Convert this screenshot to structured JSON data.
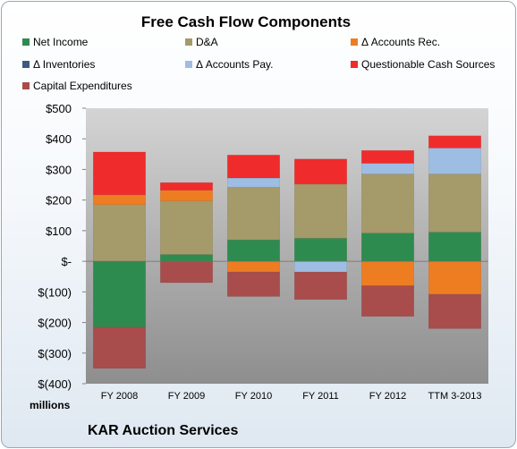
{
  "chart_data": {
    "type": "bar",
    "stacked": true,
    "title": "Free Cash Flow Components",
    "units_label": "millions",
    "company": "KAR Auction Services",
    "categories": [
      "FY 2008",
      "FY 2009",
      "FY 2010",
      "FY 2011",
      "FY 2012",
      "TTM 3-2013"
    ],
    "ylim": [
      -400,
      500
    ],
    "yticks": [
      {
        "value": 500,
        "label": "$500"
      },
      {
        "value": 400,
        "label": "$400"
      },
      {
        "value": 300,
        "label": "$300"
      },
      {
        "value": 200,
        "label": "$200"
      },
      {
        "value": 100,
        "label": "$100"
      },
      {
        "value": 0,
        "label": "$-"
      },
      {
        "value": -100,
        "label": "$(100)"
      },
      {
        "value": -200,
        "label": "$(200)"
      },
      {
        "value": -300,
        "label": "$(300)"
      },
      {
        "value": -400,
        "label": "$(400)"
      }
    ],
    "legend_position": "top",
    "series": [
      {
        "name": "Net Income",
        "color": "#2e8b4f",
        "values": [
          -215,
          22,
          70,
          75,
          92,
          95
        ]
      },
      {
        "name": "D&A",
        "color": "#a59a6a",
        "values": [
          185,
          175,
          172,
          177,
          193,
          190
        ]
      },
      {
        "name": "Δ Accounts Rec.",
        "color": "#ee7d22",
        "values": [
          32,
          35,
          -35,
          0,
          -80,
          -108
        ]
      },
      {
        "name": "Δ Inventories",
        "color": "#3c5a80",
        "values": [
          0,
          0,
          0,
          0,
          0,
          0
        ]
      },
      {
        "name": "Δ Accounts Pay.",
        "color": "#9ebde3",
        "values": [
          0,
          0,
          30,
          -35,
          35,
          85
        ]
      },
      {
        "name": "Questionable Cash Sources",
        "color": "#f02b2b",
        "values": [
          140,
          25,
          75,
          82,
          42,
          40
        ]
      },
      {
        "name": "Capital Expenditures",
        "color": "#a84c4c",
        "values": [
          -135,
          -70,
          -80,
          -90,
          -100,
          -112
        ]
      }
    ]
  }
}
